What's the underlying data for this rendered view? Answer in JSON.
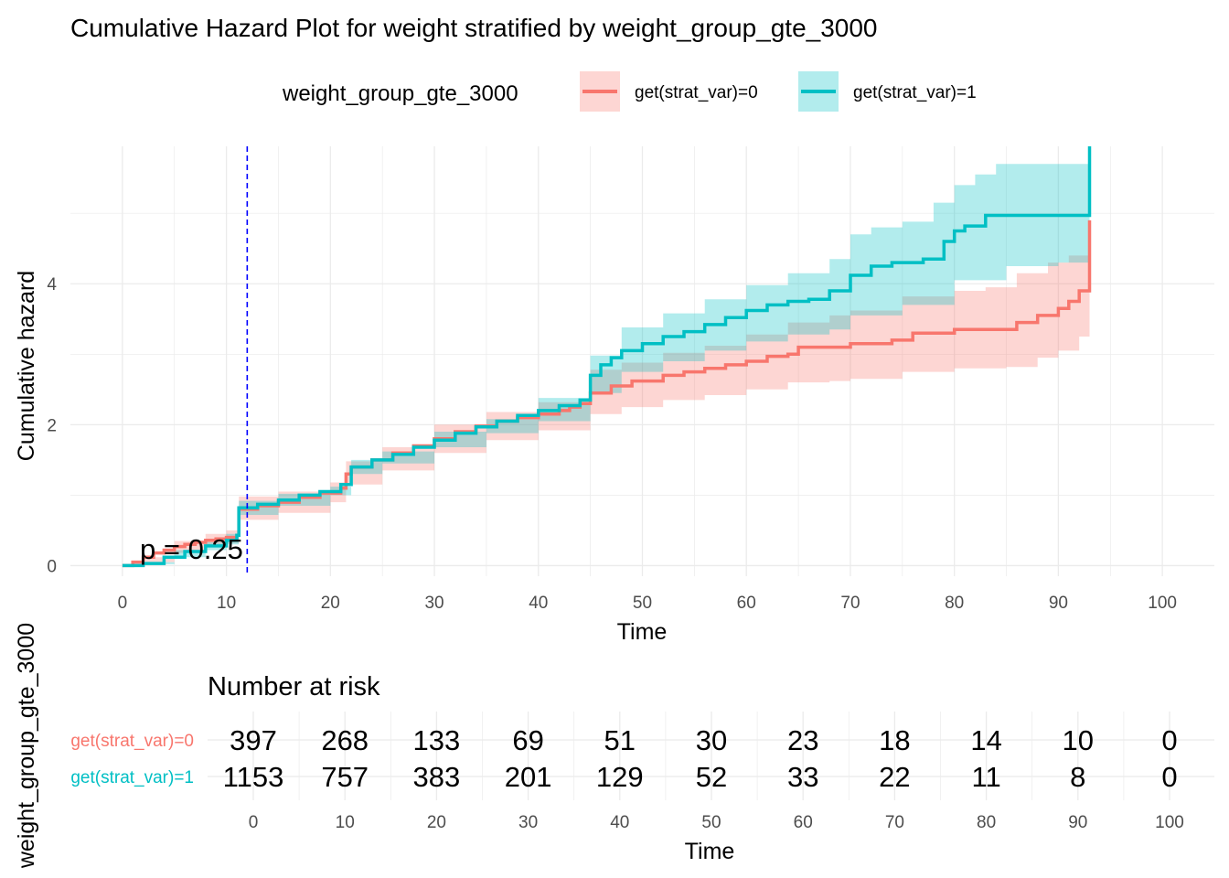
{
  "chart_data": {
    "type": "line",
    "title": "Cumulative Hazard Plot for weight stratified by weight_group_gte_3000",
    "legend": {
      "title": "weight_group_gte_3000",
      "position": "top",
      "entries": [
        "get(strat_var)=0",
        "get(strat_var)=1"
      ]
    },
    "xlabel": "Time",
    "ylabel": "Cumulative hazard",
    "xlim": [
      -5,
      105
    ],
    "ylim": [
      -0.15,
      5.95
    ],
    "x_ticks": [
      "0",
      "10",
      "20",
      "30",
      "40",
      "50",
      "60",
      "70",
      "80",
      "90",
      "100"
    ],
    "y_ticks": [
      "0",
      "2",
      "4"
    ],
    "grid": true,
    "vline_x": 12,
    "p_value_text": "p = 0.25",
    "series": [
      {
        "name": "get(strat_var)=0",
        "color": "#F8766D",
        "points": [
          [
            0,
            0
          ],
          [
            1,
            0.05
          ],
          [
            2,
            0.12
          ],
          [
            3,
            0.18
          ],
          [
            4,
            0.22
          ],
          [
            5,
            0.27
          ],
          [
            6,
            0.3
          ],
          [
            7,
            0.33
          ],
          [
            8,
            0.36
          ],
          [
            9,
            0.38
          ],
          [
            10,
            0.4
          ],
          [
            11,
            0.43
          ],
          [
            11.2,
            0.8
          ],
          [
            13,
            0.85
          ],
          [
            15,
            0.9
          ],
          [
            17,
            0.97
          ],
          [
            19,
            1.03
          ],
          [
            21,
            1.1
          ],
          [
            21.5,
            1.3
          ],
          [
            22,
            1.4
          ],
          [
            24,
            1.5
          ],
          [
            26,
            1.6
          ],
          [
            28,
            1.7
          ],
          [
            30,
            1.8
          ],
          [
            32,
            1.9
          ],
          [
            34,
            1.98
          ],
          [
            36,
            2.05
          ],
          [
            38,
            2.1
          ],
          [
            40,
            2.15
          ],
          [
            42,
            2.2
          ],
          [
            43,
            2.25
          ],
          [
            44,
            2.3
          ],
          [
            45,
            2.45
          ],
          [
            47,
            2.55
          ],
          [
            49,
            2.62
          ],
          [
            51,
            2.62
          ],
          [
            52,
            2.7
          ],
          [
            54,
            2.75
          ],
          [
            56,
            2.8
          ],
          [
            58,
            2.85
          ],
          [
            60,
            2.9
          ],
          [
            62,
            2.97
          ],
          [
            64,
            3.0
          ],
          [
            65,
            3.1
          ],
          [
            68,
            3.1
          ],
          [
            70,
            3.15
          ],
          [
            74,
            3.2
          ],
          [
            76,
            3.3
          ],
          [
            78,
            3.3
          ],
          [
            80,
            3.35
          ],
          [
            85,
            3.35
          ],
          [
            86,
            3.45
          ],
          [
            88,
            3.55
          ],
          [
            90,
            3.65
          ],
          [
            91,
            3.75
          ],
          [
            92,
            3.9
          ],
          [
            93,
            3.9
          ],
          [
            93,
            4.9
          ]
        ],
        "lower": [
          [
            0,
            0
          ],
          [
            2,
            0.05
          ],
          [
            5,
            0.18
          ],
          [
            8,
            0.27
          ],
          [
            10,
            0.32
          ],
          [
            11.2,
            0.65
          ],
          [
            15,
            0.75
          ],
          [
            20,
            0.9
          ],
          [
            21.5,
            1.15
          ],
          [
            25,
            1.35
          ],
          [
            30,
            1.6
          ],
          [
            35,
            1.78
          ],
          [
            40,
            1.92
          ],
          [
            45,
            2.15
          ],
          [
            48,
            2.25
          ],
          [
            52,
            2.35
          ],
          [
            56,
            2.42
          ],
          [
            60,
            2.5
          ],
          [
            64,
            2.6
          ],
          [
            68,
            2.62
          ],
          [
            70,
            2.65
          ],
          [
            75,
            2.75
          ],
          [
            80,
            2.8
          ],
          [
            85,
            2.82
          ],
          [
            88,
            2.95
          ],
          [
            90,
            3.05
          ],
          [
            92,
            3.25
          ],
          [
            93,
            3.25
          ]
        ],
        "upper": [
          [
            0,
            0
          ],
          [
            2,
            0.12
          ],
          [
            5,
            0.35
          ],
          [
            8,
            0.45
          ],
          [
            10,
            0.5
          ],
          [
            11.2,
            0.98
          ],
          [
            15,
            1.05
          ],
          [
            20,
            1.18
          ],
          [
            21.5,
            1.48
          ],
          [
            25,
            1.68
          ],
          [
            30,
            2.0
          ],
          [
            35,
            2.18
          ],
          [
            40,
            2.32
          ],
          [
            45,
            2.78
          ],
          [
            48,
            2.88
          ],
          [
            52,
            3.02
          ],
          [
            56,
            3.12
          ],
          [
            60,
            3.28
          ],
          [
            64,
            3.45
          ],
          [
            68,
            3.55
          ],
          [
            70,
            3.62
          ],
          [
            75,
            3.82
          ],
          [
            80,
            3.9
          ],
          [
            83,
            3.95
          ],
          [
            86,
            4.15
          ],
          [
            89,
            4.3
          ],
          [
            91,
            4.4
          ],
          [
            93,
            4.45
          ]
        ]
      },
      {
        "name": "get(strat_var)=1",
        "color": "#00BFC4",
        "points": [
          [
            0,
            0
          ],
          [
            2,
            0.03
          ],
          [
            4,
            0.12
          ],
          [
            6,
            0.2
          ],
          [
            8,
            0.28
          ],
          [
            10,
            0.36
          ],
          [
            11,
            0.43
          ],
          [
            11.2,
            0.82
          ],
          [
            13,
            0.87
          ],
          [
            15,
            0.93
          ],
          [
            17,
            1.0
          ],
          [
            19,
            1.05
          ],
          [
            21,
            1.15
          ],
          [
            22,
            1.4
          ],
          [
            24,
            1.5
          ],
          [
            26,
            1.58
          ],
          [
            28,
            1.68
          ],
          [
            30,
            1.78
          ],
          [
            32,
            1.88
          ],
          [
            34,
            1.97
          ],
          [
            36,
            2.05
          ],
          [
            38,
            2.13
          ],
          [
            40,
            2.2
          ],
          [
            42,
            2.27
          ],
          [
            44,
            2.35
          ],
          [
            45,
            2.7
          ],
          [
            46,
            2.85
          ],
          [
            47,
            2.95
          ],
          [
            48,
            3.05
          ],
          [
            50,
            3.15
          ],
          [
            52,
            3.25
          ],
          [
            54,
            3.32
          ],
          [
            56,
            3.42
          ],
          [
            58,
            3.52
          ],
          [
            60,
            3.62
          ],
          [
            62,
            3.7
          ],
          [
            64,
            3.75
          ],
          [
            66,
            3.78
          ],
          [
            68,
            3.9
          ],
          [
            70,
            4.12
          ],
          [
            72,
            4.25
          ],
          [
            74,
            4.3
          ],
          [
            77,
            4.35
          ],
          [
            79,
            4.6
          ],
          [
            80,
            4.75
          ],
          [
            81,
            4.82
          ],
          [
            83,
            4.97
          ],
          [
            93,
            4.97
          ],
          [
            93,
            5.95
          ]
        ],
        "lower": [
          [
            0,
            0
          ],
          [
            2,
            0.02
          ],
          [
            5,
            0.12
          ],
          [
            8,
            0.22
          ],
          [
            10,
            0.3
          ],
          [
            11.2,
            0.72
          ],
          [
            15,
            0.85
          ],
          [
            20,
            1.0
          ],
          [
            22,
            1.3
          ],
          [
            25,
            1.45
          ],
          [
            30,
            1.68
          ],
          [
            35,
            1.88
          ],
          [
            40,
            2.05
          ],
          [
            45,
            2.45
          ],
          [
            48,
            2.75
          ],
          [
            52,
            2.9
          ],
          [
            56,
            3.05
          ],
          [
            60,
            3.18
          ],
          [
            64,
            3.28
          ],
          [
            68,
            3.35
          ],
          [
            70,
            3.55
          ],
          [
            75,
            3.7
          ],
          [
            80,
            4.05
          ],
          [
            85,
            4.25
          ],
          [
            90,
            4.3
          ],
          [
            93,
            4.3
          ]
        ],
        "upper": [
          [
            0,
            0
          ],
          [
            2,
            0.05
          ],
          [
            5,
            0.22
          ],
          [
            8,
            0.33
          ],
          [
            10,
            0.45
          ],
          [
            11.2,
            0.92
          ],
          [
            15,
            1.02
          ],
          [
            20,
            1.12
          ],
          [
            22,
            1.5
          ],
          [
            25,
            1.62
          ],
          [
            30,
            1.9
          ],
          [
            35,
            2.08
          ],
          [
            40,
            2.38
          ],
          [
            45,
            2.98
          ],
          [
            48,
            3.38
          ],
          [
            52,
            3.58
          ],
          [
            56,
            3.78
          ],
          [
            60,
            3.98
          ],
          [
            64,
            4.15
          ],
          [
            68,
            4.35
          ],
          [
            70,
            4.7
          ],
          [
            72,
            4.8
          ],
          [
            75,
            4.88
          ],
          [
            78,
            5.15
          ],
          [
            80,
            5.4
          ],
          [
            82,
            5.55
          ],
          [
            84,
            5.7
          ],
          [
            93,
            5.7
          ]
        ]
      }
    ]
  },
  "risk_table": {
    "title": "Number at risk",
    "y_axis_label": "weight_group_gte_3000",
    "xlabel": "Time",
    "times": [
      "0",
      "10",
      "20",
      "30",
      "40",
      "50",
      "60",
      "70",
      "80",
      "90",
      "100"
    ],
    "rows": [
      {
        "label": "get(strat_var)=0",
        "color": "#F8766D",
        "values": [
          "397",
          "268",
          "133",
          "69",
          "51",
          "30",
          "23",
          "18",
          "14",
          "10",
          "0"
        ]
      },
      {
        "label": "get(strat_var)=1",
        "color": "#00BFC4",
        "values": [
          "1153",
          "757",
          "383",
          "201",
          "129",
          "52",
          "33",
          "22",
          "11",
          "8",
          "0"
        ]
      }
    ]
  }
}
